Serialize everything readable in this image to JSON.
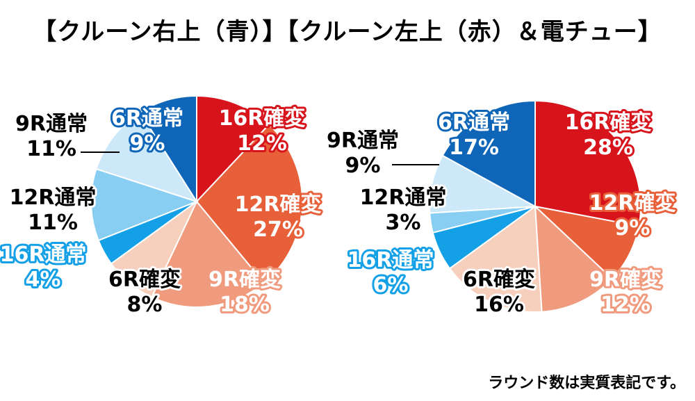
{
  "header": {
    "title": "【クルーン右上（青）】【クルーン左上（赤）＆電チュー】"
  },
  "footer": {
    "note": "ラウンド数は実質表記です。"
  },
  "chart_data": [
    {
      "type": "pie",
      "slices": [
        {
          "label": "16R確変",
          "value": 12,
          "color": "#d7141c",
          "label_color": "#ffffff",
          "outline": "#d7141c"
        },
        {
          "label": "12R確変",
          "value": 27,
          "color": "#e8603a",
          "label_color": "#ffffff",
          "outline": "#e8603a"
        },
        {
          "label": "9R確変",
          "value": 18,
          "color": "#f09a7e",
          "label_color": "#ffffff",
          "outline": "#f09a7e"
        },
        {
          "label": "6R確変",
          "value": 8,
          "color": "#f7cfbd",
          "label_color": "#000000",
          "outline": "#ffffff"
        },
        {
          "label": "16R通常",
          "value": 4,
          "color": "#13a0e6",
          "label_color": "#ffffff",
          "outline": "#13a0e6"
        },
        {
          "label": "12R通常",
          "value": 11,
          "color": "#87cef2",
          "label_color": "#000000",
          "outline": "#ffffff"
        },
        {
          "label": "9R通常",
          "value": 11,
          "color": "#cde9f9",
          "label_color": "#000000",
          "outline": "#ffffff"
        },
        {
          "label": "6R通常",
          "value": 9,
          "color": "#0f66b8",
          "label_color": "#ffffff",
          "outline": "#0f66b8"
        }
      ]
    },
    {
      "type": "pie",
      "slices": [
        {
          "label": "16R確変",
          "value": 28,
          "color": "#d7141c",
          "label_color": "#ffffff",
          "outline": "#d7141c"
        },
        {
          "label": "12R確変",
          "value": 9,
          "color": "#e8603a",
          "label_color": "#ffffff",
          "outline": "#e8603a"
        },
        {
          "label": "9R確変",
          "value": 12,
          "color": "#f09a7e",
          "label_color": "#ffffff",
          "outline": "#f09a7e"
        },
        {
          "label": "6R確変",
          "value": 16,
          "color": "#f7cfbd",
          "label_color": "#000000",
          "outline": "#ffffff"
        },
        {
          "label": "16R通常",
          "value": 6,
          "color": "#13a0e6",
          "label_color": "#ffffff",
          "outline": "#13a0e6"
        },
        {
          "label": "12R通常",
          "value": 3,
          "color": "#87cef2",
          "label_color": "#000000",
          "outline": "#ffffff"
        },
        {
          "label": "9R通常",
          "value": 9,
          "color": "#cde9f9",
          "label_color": "#000000",
          "outline": "#ffffff"
        },
        {
          "label": "6R通常",
          "value": 17,
          "color": "#0f66b8",
          "label_color": "#ffffff",
          "outline": "#0f66b8"
        }
      ]
    }
  ]
}
